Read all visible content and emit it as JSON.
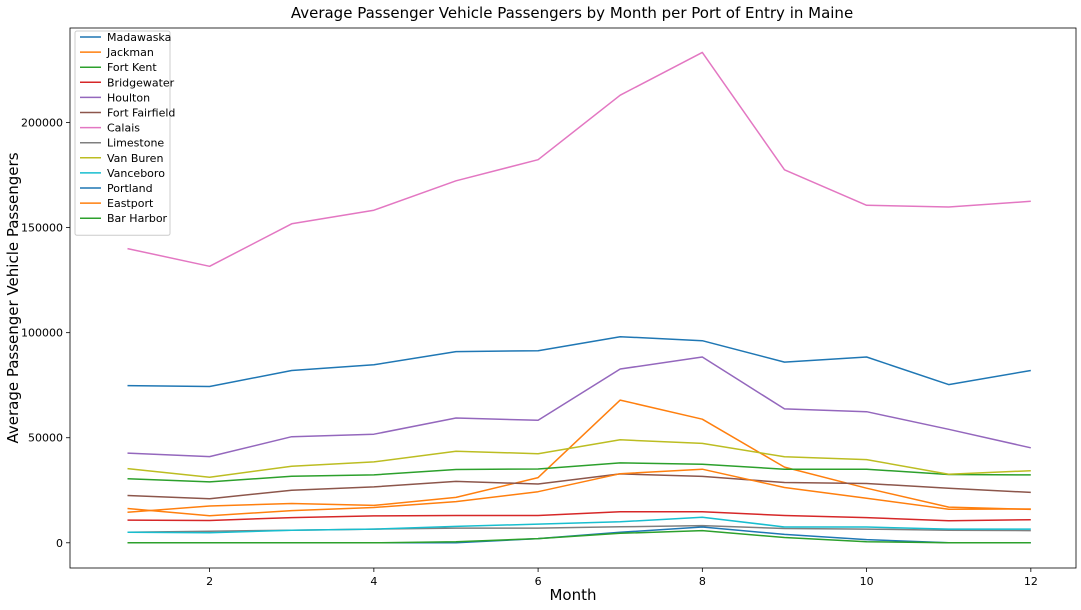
{
  "chart_data": {
    "type": "line",
    "title": "Average Passenger Vehicle Passengers by Month per Port of Entry in Maine",
    "xlabel": "Month",
    "ylabel": "Average Passenger Vehicle Passengers",
    "x": [
      1,
      2,
      3,
      4,
      5,
      6,
      7,
      8,
      9,
      10,
      11,
      12
    ],
    "xlim": [
      0.3,
      12.55
    ],
    "ylim": [
      -12000,
      245000
    ],
    "xticks": [
      2,
      4,
      6,
      8,
      10,
      12
    ],
    "yticks": [
      0,
      50000,
      100000,
      150000,
      200000
    ],
    "grid": false,
    "legend_position": "top-left",
    "series": [
      {
        "name": "Madawaska",
        "color": "#1f77b4",
        "values": [
          74800,
          74400,
          82000,
          84700,
          91000,
          91400,
          98100,
          96200,
          86000,
          88400,
          75300,
          82000
        ]
      },
      {
        "name": "Jackman",
        "color": "#ff7f0e",
        "values": [
          14500,
          17500,
          18700,
          17800,
          21600,
          31000,
          67900,
          58800,
          36000,
          26000,
          17000,
          15900
        ]
      },
      {
        "name": "Fort Kent",
        "color": "#2ca02c",
        "values": [
          30500,
          29000,
          31700,
          32300,
          34900,
          35100,
          38000,
          37400,
          35000,
          35000,
          32500,
          32300
        ]
      },
      {
        "name": "Bridgewater",
        "color": "#d62728",
        "values": [
          10800,
          10600,
          12000,
          12800,
          13000,
          13000,
          14800,
          14800,
          13000,
          12000,
          10500,
          11000
        ]
      },
      {
        "name": "Houlton",
        "color": "#9467bd",
        "values": [
          42700,
          41000,
          50500,
          51700,
          59400,
          58300,
          82700,
          88400,
          63700,
          62400,
          54000,
          45200
        ]
      },
      {
        "name": "Fort Fairfield",
        "color": "#8c564b",
        "values": [
          22500,
          21000,
          25000,
          26600,
          29200,
          28000,
          32800,
          31600,
          28700,
          28200,
          26000,
          24000
        ]
      },
      {
        "name": "Calais",
        "color": "#e377c2",
        "values": [
          140000,
          131600,
          151800,
          158300,
          172300,
          182300,
          213000,
          233400,
          177500,
          160600,
          159800,
          162500
        ]
      },
      {
        "name": "Limestone",
        "color": "#7f7f7f",
        "values": [
          5000,
          5500,
          6000,
          6500,
          7000,
          7000,
          7600,
          8200,
          6800,
          6500,
          6000,
          5800
        ]
      },
      {
        "name": "Van Buren",
        "color": "#bcbd22",
        "values": [
          35300,
          31200,
          36400,
          38500,
          43600,
          42400,
          49000,
          47300,
          40900,
          39600,
          32600,
          34300
        ]
      },
      {
        "name": "Vanceboro",
        "color": "#17becf",
        "values": [
          5000,
          4800,
          6000,
          6500,
          7800,
          8900,
          10000,
          12200,
          7500,
          7500,
          6500,
          6500
        ]
      },
      {
        "name": "Portland",
        "color": "#1f77b4",
        "values": [
          0,
          0,
          0,
          0,
          0,
          2000,
          5000,
          7500,
          4000,
          1500,
          0,
          0
        ]
      },
      {
        "name": "Eastport",
        "color": "#ff7f0e",
        "values": [
          16300,
          12900,
          15300,
          16800,
          19600,
          24300,
          32900,
          35000,
          26300,
          21200,
          16000,
          16100
        ]
      },
      {
        "name": "Bar Harbor",
        "color": "#2ca02c",
        "values": [
          0,
          0,
          0,
          0,
          500,
          2000,
          4500,
          5800,
          2500,
          500,
          0,
          0
        ]
      }
    ]
  }
}
